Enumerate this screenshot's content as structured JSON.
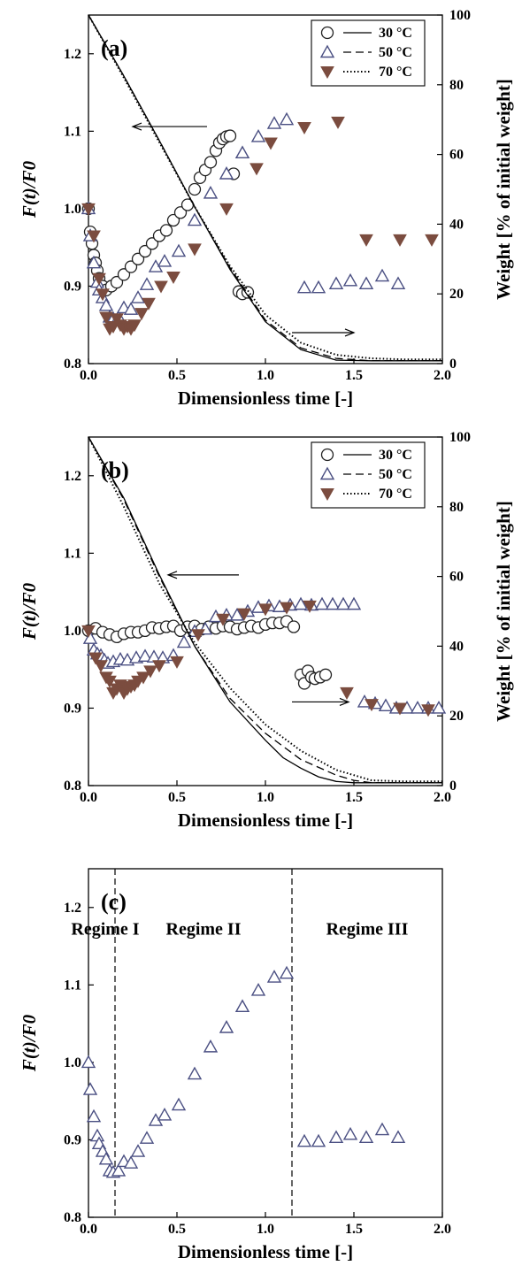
{
  "colors": {
    "circle": "#222222",
    "triangle_up": "#4a4f82",
    "triangle_down": "#7b4c3f"
  },
  "chart_data": [
    {
      "panel": "(a)",
      "type": "scatter",
      "xlabel": "Dimensionless time [-]",
      "ylabel_left": "F(t)/F0",
      "ylabel_right": "Weight [% of initial weight]",
      "xlim": [
        0,
        2
      ],
      "ylim": [
        0.8,
        1.25
      ],
      "ylim_right": [
        0,
        100
      ],
      "x_ticks": [
        "0.0",
        "0.5",
        "1.0",
        "1.5",
        "2.0"
      ],
      "y_ticks": [
        "0.8",
        "0.9",
        "1.0",
        "1.1",
        "1.2"
      ],
      "y_ticks_right": [
        "0",
        "20",
        "40",
        "60",
        "80",
        "100"
      ],
      "legend_position": "top-right",
      "legend": [
        {
          "marker": "circle",
          "line": "solid",
          "label": "30 °C"
        },
        {
          "marker": "triangle-up",
          "line": "dashed",
          "label": "50 °C"
        },
        {
          "marker": "triangle-down",
          "line": "dotted",
          "label": "70 °C"
        }
      ],
      "series": [
        {
          "name": "30 °C",
          "marker": "circle",
          "axis": "left",
          "x": [
            0.0,
            0.01,
            0.02,
            0.03,
            0.04,
            0.05,
            0.06,
            0.08,
            0.1,
            0.13,
            0.16,
            0.2,
            0.24,
            0.28,
            0.32,
            0.36,
            0.4,
            0.44,
            0.48,
            0.52,
            0.56,
            0.6,
            0.63,
            0.66,
            0.69,
            0.72,
            0.74,
            0.76,
            0.78,
            0.8,
            0.82,
            0.85,
            0.87,
            0.9
          ],
          "y": [
            1.0,
            0.97,
            0.955,
            0.94,
            0.93,
            0.92,
            0.91,
            0.9,
            0.895,
            0.9,
            0.905,
            0.915,
            0.925,
            0.935,
            0.945,
            0.955,
            0.965,
            0.972,
            0.985,
            0.995,
            1.005,
            1.025,
            1.04,
            1.05,
            1.06,
            1.075,
            1.085,
            1.09,
            1.093,
            1.094,
            1.045,
            0.893,
            0.89,
            0.892
          ]
        },
        {
          "name": "50 °C",
          "marker": "triangle-up",
          "axis": "left",
          "x": [
            0.0,
            0.01,
            0.03,
            0.05,
            0.06,
            0.08,
            0.1,
            0.12,
            0.14,
            0.17,
            0.2,
            0.24,
            0.28,
            0.33,
            0.38,
            0.43,
            0.51,
            0.6,
            0.69,
            0.78,
            0.87,
            0.96,
            1.05,
            1.12,
            1.22,
            1.3,
            1.4,
            1.48,
            1.57,
            1.66,
            1.75
          ],
          "y": [
            1.0,
            0.965,
            0.93,
            0.905,
            0.895,
            0.885,
            0.875,
            0.86,
            0.858,
            0.86,
            0.872,
            0.87,
            0.885,
            0.902,
            0.925,
            0.932,
            0.945,
            0.985,
            1.02,
            1.045,
            1.072,
            1.093,
            1.11,
            1.115,
            0.898,
            0.898,
            0.903,
            0.907,
            0.903,
            0.913,
            0.903
          ]
        },
        {
          "name": "70 °C",
          "marker": "triangle-down",
          "axis": "left",
          "x": [
            0.0,
            0.03,
            0.06,
            0.08,
            0.1,
            0.12,
            0.14,
            0.16,
            0.18,
            0.2,
            0.22,
            0.24,
            0.26,
            0.3,
            0.34,
            0.41,
            0.48,
            0.6,
            0.78,
            0.95,
            1.03,
            1.22,
            1.41,
            1.57,
            1.76,
            1.94
          ],
          "y": [
            1.0,
            0.965,
            0.91,
            0.89,
            0.86,
            0.845,
            0.848,
            0.858,
            0.85,
            0.845,
            0.848,
            0.845,
            0.85,
            0.865,
            0.878,
            0.9,
            0.912,
            0.948,
            1.0,
            1.052,
            1.085,
            1.105,
            1.112,
            0.96,
            0.96,
            0.96
          ]
        },
        {
          "name": "30 °C",
          "line": "solid",
          "axis": "right",
          "x": [
            0.0,
            0.2,
            0.4,
            0.6,
            0.8,
            1.0,
            1.2,
            1.4,
            1.6,
            1.8,
            2.0
          ],
          "y": [
            100,
            82.5,
            64,
            45,
            27,
            12,
            4,
            1,
            0.8,
            0.8,
            0.8
          ]
        },
        {
          "name": "50 °C",
          "line": "dashed",
          "axis": "right",
          "x": [
            0.0,
            0.2,
            0.4,
            0.6,
            0.8,
            1.0,
            1.2,
            1.4,
            1.6,
            1.8,
            2.0
          ],
          "y": [
            100,
            82.5,
            64,
            45,
            27.5,
            12.5,
            4.5,
            1.5,
            0.8,
            0.8,
            0.8
          ]
        },
        {
          "name": "70 °C",
          "line": "dotted",
          "axis": "right",
          "x": [
            0.0,
            0.2,
            0.4,
            0.6,
            0.8,
            1.0,
            1.2,
            1.4,
            1.6,
            1.8,
            2.0
          ],
          "y": [
            100,
            82,
            63.5,
            45,
            28,
            14,
            6,
            2.5,
            1.5,
            1.2,
            1.2
          ]
        }
      ],
      "annotations": [
        {
          "type": "arrow",
          "direction": "left",
          "x_from": 0.67,
          "x_to": 0.25,
          "y": 1.106
        },
        {
          "type": "arrow",
          "direction": "right",
          "x_from": 1.15,
          "x_to": 1.5,
          "y": 0.84
        }
      ]
    },
    {
      "panel": "(b)",
      "type": "scatter",
      "xlabel": "Dimensionless time [-]",
      "ylabel_left": "F(t)/F0",
      "ylabel_right": "Weight [% of initial weight]",
      "xlim": [
        0,
        2
      ],
      "ylim": [
        0.8,
        1.25
      ],
      "ylim_right": [
        0,
        100
      ],
      "x_ticks": [
        "0.0",
        "0.5",
        "1.0",
        "1.5",
        "2.0"
      ],
      "y_ticks": [
        "0.8",
        "0.9",
        "1.0",
        "1.1",
        "1.2"
      ],
      "y_ticks_right": [
        "0",
        "20",
        "40",
        "60",
        "80",
        "100"
      ],
      "legend_position": "top-right",
      "legend": [
        {
          "marker": "circle",
          "line": "solid",
          "label": "30 °C"
        },
        {
          "marker": "triangle-up",
          "line": "dashed",
          "label": "50 °C"
        },
        {
          "marker": "triangle-down",
          "line": "dotted",
          "label": "70 °C"
        }
      ],
      "series": [
        {
          "name": "30 °C",
          "marker": "circle",
          "axis": "left",
          "x": [
            0.0,
            0.04,
            0.08,
            0.12,
            0.16,
            0.2,
            0.24,
            0.28,
            0.32,
            0.36,
            0.4,
            0.44,
            0.48,
            0.52,
            0.56,
            0.6,
            0.64,
            0.68,
            0.72,
            0.76,
            0.8,
            0.84,
            0.88,
            0.92,
            0.96,
            1.0,
            1.04,
            1.08,
            1.12,
            1.16,
            1.2,
            1.22,
            1.24,
            1.26,
            1.28,
            1.31,
            1.34
          ],
          "y": [
            1.0,
            1.003,
            0.998,
            0.995,
            0.992,
            0.996,
            0.998,
            0.998,
            1.0,
            1.004,
            1.003,
            1.005,
            1.006,
            1.0,
            1.005,
            1.006,
            1.002,
            1.005,
            1.003,
            1.006,
            1.005,
            1.002,
            1.004,
            1.006,
            1.004,
            1.008,
            1.01,
            1.01,
            1.012,
            1.005,
            0.943,
            0.932,
            0.948,
            0.94,
            0.938,
            0.94,
            0.943
          ]
        },
        {
          "name": "50 °C",
          "marker": "triangle-up",
          "axis": "left",
          "x": [
            0.01,
            0.03,
            0.05,
            0.07,
            0.09,
            0.11,
            0.14,
            0.18,
            0.22,
            0.27,
            0.32,
            0.37,
            0.42,
            0.48,
            0.54,
            0.6,
            0.66,
            0.72,
            0.78,
            0.84,
            0.9,
            0.96,
            1.02,
            1.08,
            1.14,
            1.2,
            1.26,
            1.32,
            1.38,
            1.44,
            1.5,
            1.56,
            1.62,
            1.68,
            1.74,
            1.8,
            1.86,
            1.92,
            1.98
          ],
          "y": [
            0.99,
            0.975,
            0.97,
            0.968,
            0.962,
            0.958,
            0.96,
            0.963,
            0.962,
            0.965,
            0.967,
            0.966,
            0.965,
            0.968,
            0.985,
            0.999,
            1.002,
            1.018,
            1.02,
            1.02,
            1.025,
            1.03,
            1.032,
            1.031,
            1.033,
            1.034,
            1.033,
            1.034,
            1.034,
            1.034,
            1.034,
            0.908,
            0.906,
            0.903,
            0.9,
            0.9,
            0.9,
            0.9,
            0.9
          ]
        },
        {
          "name": "70 °C",
          "marker": "triangle-down",
          "axis": "left",
          "x": [
            0.0,
            0.04,
            0.07,
            0.1,
            0.12,
            0.14,
            0.16,
            0.18,
            0.2,
            0.22,
            0.24,
            0.26,
            0.28,
            0.31,
            0.35,
            0.4,
            0.5,
            0.62,
            0.76,
            0.88,
            1.0,
            1.12,
            1.25,
            1.46,
            1.6,
            1.76,
            1.92
          ],
          "y": [
            1.0,
            0.965,
            0.955,
            0.94,
            0.935,
            0.92,
            0.925,
            0.93,
            0.92,
            0.925,
            0.928,
            0.93,
            0.935,
            0.94,
            0.948,
            0.955,
            0.96,
            0.995,
            1.015,
            1.022,
            1.028,
            1.03,
            1.032,
            0.92,
            0.905,
            0.9,
            0.898
          ]
        },
        {
          "name": "30 °C",
          "line": "solid",
          "axis": "right",
          "x": [
            0.0,
            0.2,
            0.4,
            0.6,
            0.8,
            1.0,
            1.1,
            1.2,
            1.3,
            1.4,
            1.5,
            1.6,
            1.8,
            2.0
          ],
          "y": [
            100,
            82.5,
            60.5,
            40,
            24,
            13,
            8,
            5,
            2.5,
            1.2,
            0.8,
            0.8,
            0.8,
            0.8
          ]
        },
        {
          "name": "50 °C",
          "line": "dashed",
          "axis": "right",
          "x": [
            0.0,
            0.2,
            0.4,
            0.6,
            0.8,
            1.0,
            1.2,
            1.4,
            1.5,
            1.6,
            1.8,
            2.0
          ],
          "y": [
            100,
            82,
            60,
            40,
            25,
            15,
            7.5,
            3,
            1.5,
            0.8,
            0.8,
            0.8
          ]
        },
        {
          "name": "70 °C",
          "line": "dotted",
          "axis": "right",
          "x": [
            0.0,
            0.2,
            0.4,
            0.6,
            0.8,
            1.0,
            1.2,
            1.4,
            1.6,
            1.8,
            2.0
          ],
          "y": [
            100,
            80,
            58,
            41,
            28,
            17.5,
            10,
            4.5,
            1.5,
            1.2,
            1.2
          ]
        }
      ],
      "annotations": [
        {
          "type": "arrow",
          "direction": "left",
          "x_from": 0.85,
          "x_to": 0.45,
          "y": 1.072
        },
        {
          "type": "arrow",
          "direction": "right",
          "x_from": 1.15,
          "x_to": 1.47,
          "y": 0.908
        }
      ]
    },
    {
      "panel": "(c)",
      "type": "scatter",
      "xlabel": "Dimensionless time [-]",
      "ylabel_left": "F(t)/F0",
      "xlim": [
        0,
        2
      ],
      "ylim": [
        0.8,
        1.25
      ],
      "x_ticks": [
        "0.0",
        "0.5",
        "1.0",
        "1.5",
        "2.0"
      ],
      "y_ticks": [
        "0.8",
        "0.9",
        "1.0",
        "1.1",
        "1.2"
      ],
      "regime_boundaries": [
        0.15,
        1.15
      ],
      "regime_labels": [
        "Regime I",
        "Regime II",
        "Regime III"
      ],
      "series": [
        {
          "name": "50 °C",
          "marker": "triangle-up",
          "axis": "left",
          "x": [
            0.0,
            0.01,
            0.03,
            0.05,
            0.06,
            0.08,
            0.1,
            0.12,
            0.14,
            0.17,
            0.2,
            0.24,
            0.28,
            0.33,
            0.38,
            0.43,
            0.51,
            0.6,
            0.69,
            0.78,
            0.87,
            0.96,
            1.05,
            1.12,
            1.22,
            1.3,
            1.4,
            1.48,
            1.57,
            1.66,
            1.75
          ],
          "y": [
            1.0,
            0.965,
            0.93,
            0.905,
            0.895,
            0.885,
            0.875,
            0.86,
            0.858,
            0.86,
            0.872,
            0.87,
            0.885,
            0.902,
            0.925,
            0.932,
            0.945,
            0.985,
            1.02,
            1.045,
            1.072,
            1.093,
            1.11,
            1.115,
            0.898,
            0.898,
            0.903,
            0.907,
            0.903,
            0.913,
            0.903
          ]
        }
      ]
    }
  ]
}
